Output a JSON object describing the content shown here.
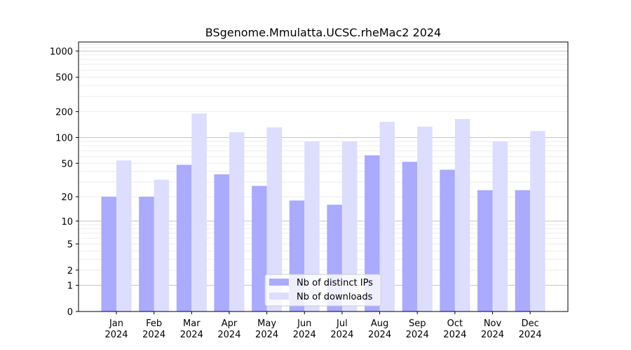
{
  "chart_data": {
    "type": "bar",
    "title": "BSgenome.Mmulatta.UCSC.rheMac2 2024",
    "xlabel": "",
    "ylabel": "",
    "yscale": "log10(y+1)",
    "ylim": [
      0,
      1300
    ],
    "yticks": [
      0,
      1,
      2,
      5,
      10,
      20,
      50,
      100,
      200,
      500,
      1000
    ],
    "grid": true,
    "legend_position": "bottom-center",
    "categories": [
      "Jan\n2024",
      "Feb\n2024",
      "Mar\n2024",
      "Apr\n2024",
      "May\n2024",
      "Jun\n2024",
      "Jul\n2024",
      "Aug\n2024",
      "Sep\n2024",
      "Oct\n2024",
      "Nov\n2024",
      "Dec\n2024"
    ],
    "series": [
      {
        "name": "Nb of distinct IPs",
        "color": "#aaaaff",
        "values": [
          20,
          20,
          48,
          37,
          27,
          18,
          16,
          62,
          52,
          42,
          24,
          24
        ]
      },
      {
        "name": "Nb of downloads",
        "color": "#ddddff",
        "values": [
          54,
          32,
          190,
          115,
          131,
          90,
          90,
          152,
          134,
          164,
          90,
          119
        ]
      }
    ]
  }
}
